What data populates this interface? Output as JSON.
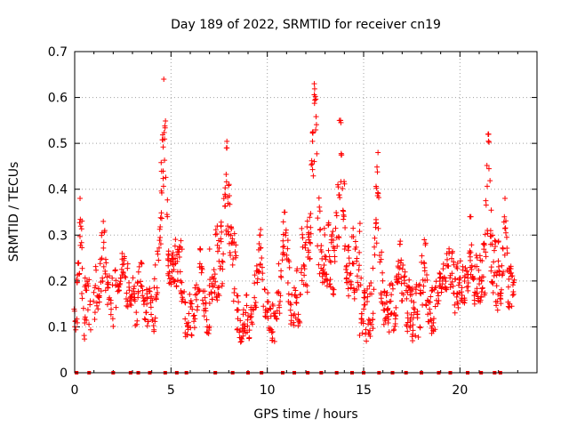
{
  "chart_data": {
    "type": "scatter",
    "title": "Day 189 of 2022, SRMTID for receiver cn19",
    "xlabel": "GPS time / hours",
    "ylabel": "SRMTID / TECUs",
    "xlim": [
      0,
      24
    ],
    "ylim": [
      0,
      0.7
    ],
    "xticks": [
      0,
      5,
      10,
      15,
      20
    ],
    "yticks": [
      0,
      0.1,
      0.2,
      0.3,
      0.4,
      0.5,
      0.6,
      0.7
    ],
    "grid": true,
    "marker": "plus",
    "color": "#ff0000",
    "clusters": [
      {
        "x0": 0.0,
        "x1": 0.8,
        "base": 0.14,
        "amp": 0.08,
        "peak": 0.38,
        "n": 30,
        "zero_marks": [
          0.1,
          0.75
        ]
      },
      {
        "x0": 1.0,
        "x1": 2.0,
        "base": 0.17,
        "amp": 0.08,
        "peak": 0.33,
        "n": 34,
        "zero_marks": [
          2.0
        ]
      },
      {
        "x0": 2.1,
        "x1": 3.0,
        "base": 0.18,
        "amp": 0.06,
        "peak": 0.26,
        "n": 28,
        "zero_marks": [
          2.9
        ]
      },
      {
        "x0": 3.0,
        "x1": 4.2,
        "base": 0.14,
        "amp": 0.06,
        "peak": 0.24,
        "n": 40,
        "zero_marks": [
          3.3,
          3.9
        ]
      },
      {
        "x0": 4.2,
        "x1": 5.6,
        "base": 0.22,
        "amp": 0.08,
        "peak": 0.64,
        "n": 58,
        "zero_marks": [
          4.7,
          5.3
        ]
      },
      {
        "x0": 5.6,
        "x1": 7.0,
        "base": 0.13,
        "amp": 0.06,
        "peak": 0.27,
        "n": 45,
        "zero_marks": [
          5.8
        ]
      },
      {
        "x0": 7.0,
        "x1": 8.4,
        "base": 0.23,
        "amp": 0.1,
        "peak": 0.49,
        "n": 52,
        "zero_marks": [
          7.3,
          8.2
        ]
      },
      {
        "x0": 8.4,
        "x1": 10.4,
        "base": 0.12,
        "amp": 0.07,
        "peak": 0.3,
        "n": 64,
        "zero_marks": [
          9.0,
          9.7
        ]
      },
      {
        "x0": 10.4,
        "x1": 11.8,
        "base": 0.16,
        "amp": 0.08,
        "peak": 0.35,
        "n": 48,
        "zero_marks": [
          10.8,
          11.4
        ]
      },
      {
        "x0": 11.8,
        "x1": 13.3,
        "base": 0.25,
        "amp": 0.1,
        "peak": 0.63,
        "n": 64,
        "zero_marks": [
          12.1,
          12.8
        ]
      },
      {
        "x0": 13.3,
        "x1": 14.8,
        "base": 0.24,
        "amp": 0.1,
        "peak": 0.55,
        "n": 60,
        "zero_marks": [
          13.6,
          14.4
        ]
      },
      {
        "x0": 14.8,
        "x1": 16.2,
        "base": 0.13,
        "amp": 0.08,
        "peak": 0.48,
        "n": 55,
        "zero_marks": [
          15.0,
          15.8
        ]
      },
      {
        "x0": 16.2,
        "x1": 17.5,
        "base": 0.14,
        "amp": 0.07,
        "peak": 0.28,
        "n": 46,
        "zero_marks": [
          16.5,
          17.2
        ]
      },
      {
        "x0": 17.5,
        "x1": 18.7,
        "base": 0.13,
        "amp": 0.07,
        "peak": 0.29,
        "n": 42,
        "zero_marks": [
          18.0
        ]
      },
      {
        "x0": 18.7,
        "x1": 20.0,
        "base": 0.19,
        "amp": 0.06,
        "peak": 0.27,
        "n": 44,
        "zero_marks": [
          18.9,
          19.5
        ]
      },
      {
        "x0": 20.0,
        "x1": 21.0,
        "base": 0.2,
        "amp": 0.07,
        "peak": 0.34,
        "n": 40,
        "zero_marks": [
          20.4
        ]
      },
      {
        "x0": 21.0,
        "x1": 22.0,
        "base": 0.22,
        "amp": 0.09,
        "peak": 0.52,
        "n": 44,
        "zero_marks": [
          21.1,
          21.8
        ]
      },
      {
        "x0": 22.0,
        "x1": 22.8,
        "base": 0.19,
        "amp": 0.07,
        "peak": 0.38,
        "n": 32,
        "zero_marks": [
          22.1
        ]
      }
    ]
  }
}
